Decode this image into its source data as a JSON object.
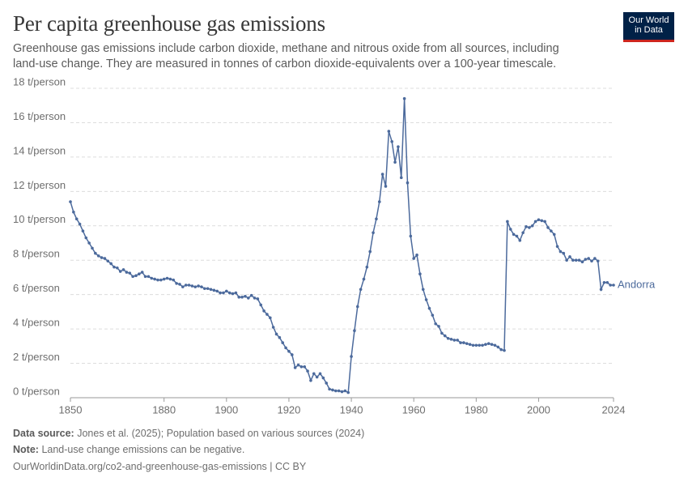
{
  "chart_data": {
    "type": "line",
    "title": "Per capita greenhouse gas emissions",
    "subtitle": "Greenhouse gas emissions include carbon dioxide, methane and nitrous oxide from all sources, including land-use change. They are measured in tonnes of carbon dioxide-equivalents over a 100-year timescale.",
    "logo": [
      "Our World",
      "in Data"
    ],
    "source_label": "Data source:",
    "source_text": "Jones et al. (2025); Population based on various sources (2024)",
    "note_label": "Note:",
    "note_text": "Land-use change emissions can be negative.",
    "url_text": "OurWorldinData.org/co2-and-greenhouse-gas-emissions | CC BY",
    "x": [
      1850,
      1851,
      1852,
      1853,
      1854,
      1855,
      1856,
      1857,
      1858,
      1859,
      1860,
      1861,
      1862,
      1863,
      1864,
      1865,
      1866,
      1867,
      1868,
      1869,
      1870,
      1871,
      1872,
      1873,
      1874,
      1875,
      1876,
      1877,
      1878,
      1879,
      1880,
      1881,
      1882,
      1883,
      1884,
      1885,
      1886,
      1887,
      1888,
      1889,
      1890,
      1891,
      1892,
      1893,
      1894,
      1895,
      1896,
      1897,
      1898,
      1899,
      1900,
      1901,
      1902,
      1903,
      1904,
      1905,
      1906,
      1907,
      1908,
      1909,
      1910,
      1911,
      1912,
      1913,
      1914,
      1915,
      1916,
      1917,
      1918,
      1919,
      1920,
      1921,
      1922,
      1923,
      1924,
      1925,
      1926,
      1927,
      1928,
      1929,
      1930,
      1931,
      1932,
      1933,
      1934,
      1935,
      1936,
      1937,
      1938,
      1939,
      1940,
      1941,
      1942,
      1943,
      1944,
      1945,
      1946,
      1947,
      1948,
      1949,
      1950,
      1951,
      1952,
      1953,
      1954,
      1955,
      1956,
      1957,
      1958,
      1959,
      1960,
      1961,
      1962,
      1963,
      1964,
      1965,
      1966,
      1967,
      1968,
      1969,
      1970,
      1971,
      1972,
      1973,
      1974,
      1975,
      1976,
      1977,
      1978,
      1979,
      1980,
      1981,
      1982,
      1983,
      1984,
      1985,
      1986,
      1987,
      1988,
      1989,
      1990,
      1991,
      1992,
      1993,
      1994,
      1995,
      1996,
      1997,
      1998,
      1999,
      2000,
      2001,
      2002,
      2003,
      2004,
      2005,
      2006,
      2007,
      2008,
      2009,
      2010,
      2011,
      2012,
      2013,
      2014,
      2015,
      2016,
      2017,
      2018,
      2019,
      2020,
      2021,
      2022,
      2023,
      2024
    ],
    "series": [
      {
        "name": "Andorra",
        "color": "#4c6a9c",
        "values": [
          11.4,
          10.8,
          10.4,
          10.1,
          9.7,
          9.3,
          9.0,
          8.7,
          8.4,
          8.25,
          8.15,
          8.1,
          7.95,
          7.8,
          7.6,
          7.55,
          7.35,
          7.45,
          7.3,
          7.25,
          7.05,
          7.1,
          7.2,
          7.3,
          7.05,
          7.05,
          6.95,
          6.9,
          6.85,
          6.85,
          6.9,
          6.95,
          6.9,
          6.85,
          6.65,
          6.6,
          6.45,
          6.55,
          6.55,
          6.5,
          6.45,
          6.5,
          6.45,
          6.35,
          6.35,
          6.3,
          6.25,
          6.2,
          6.1,
          6.1,
          6.2,
          6.1,
          6.05,
          6.1,
          5.85,
          5.85,
          5.9,
          5.8,
          5.95,
          5.8,
          5.75,
          5.4,
          5.05,
          4.85,
          4.65,
          4.1,
          3.7,
          3.5,
          3.2,
          2.9,
          2.7,
          2.5,
          1.75,
          1.9,
          1.8,
          1.8,
          1.55,
          1.0,
          1.4,
          1.2,
          1.4,
          1.15,
          0.85,
          0.5,
          0.45,
          0.4,
          0.4,
          0.35,
          0.4,
          0.3,
          2.4,
          3.9,
          5.3,
          6.3,
          6.9,
          7.6,
          8.5,
          9.6,
          10.4,
          11.4,
          13.0,
          12.3,
          15.5,
          14.9,
          13.7,
          14.6,
          12.8,
          17.4,
          12.5,
          9.4,
          8.1,
          8.3,
          7.2,
          6.3,
          5.7,
          5.2,
          4.8,
          4.3,
          4.15,
          3.75,
          3.6,
          3.45,
          3.4,
          3.35,
          3.35,
          3.2,
          3.2,
          3.15,
          3.1,
          3.05,
          3.05,
          3.05,
          3.05,
          3.1,
          3.15,
          3.1,
          3.05,
          2.95,
          2.8,
          2.75,
          10.25,
          9.8,
          9.5,
          9.4,
          9.15,
          9.6,
          9.95,
          9.9,
          10.0,
          10.25,
          10.35,
          10.3,
          10.25,
          9.9,
          9.7,
          9.5,
          8.8,
          8.5,
          8.4,
          8.0,
          8.2,
          8.0,
          8.0,
          8.0,
          7.9,
          8.05,
          8.1,
          7.95,
          8.1,
          7.95,
          6.3,
          6.7,
          6.7,
          6.55,
          6.55
        ]
      }
    ],
    "xlim": [
      1850,
      2024
    ],
    "xticks": [
      1850,
      1880,
      1900,
      1920,
      1940,
      1960,
      1980,
      2000,
      2024
    ],
    "ylim": [
      0,
      18
    ],
    "yticks": [
      {
        "value": 0,
        "label": "0 t/person"
      },
      {
        "value": 2,
        "label": "2 t/person"
      },
      {
        "value": 4,
        "label": "4 t/person"
      },
      {
        "value": 6,
        "label": "6 t/person"
      },
      {
        "value": 8,
        "label": "8 t/person"
      },
      {
        "value": 10,
        "label": "10 t/person"
      },
      {
        "value": 12,
        "label": "12 t/person"
      },
      {
        "value": 14,
        "label": "14 t/person"
      },
      {
        "value": 16,
        "label": "16 t/person"
      },
      {
        "value": 18,
        "label": "18 t/person"
      }
    ],
    "grid": true
  }
}
